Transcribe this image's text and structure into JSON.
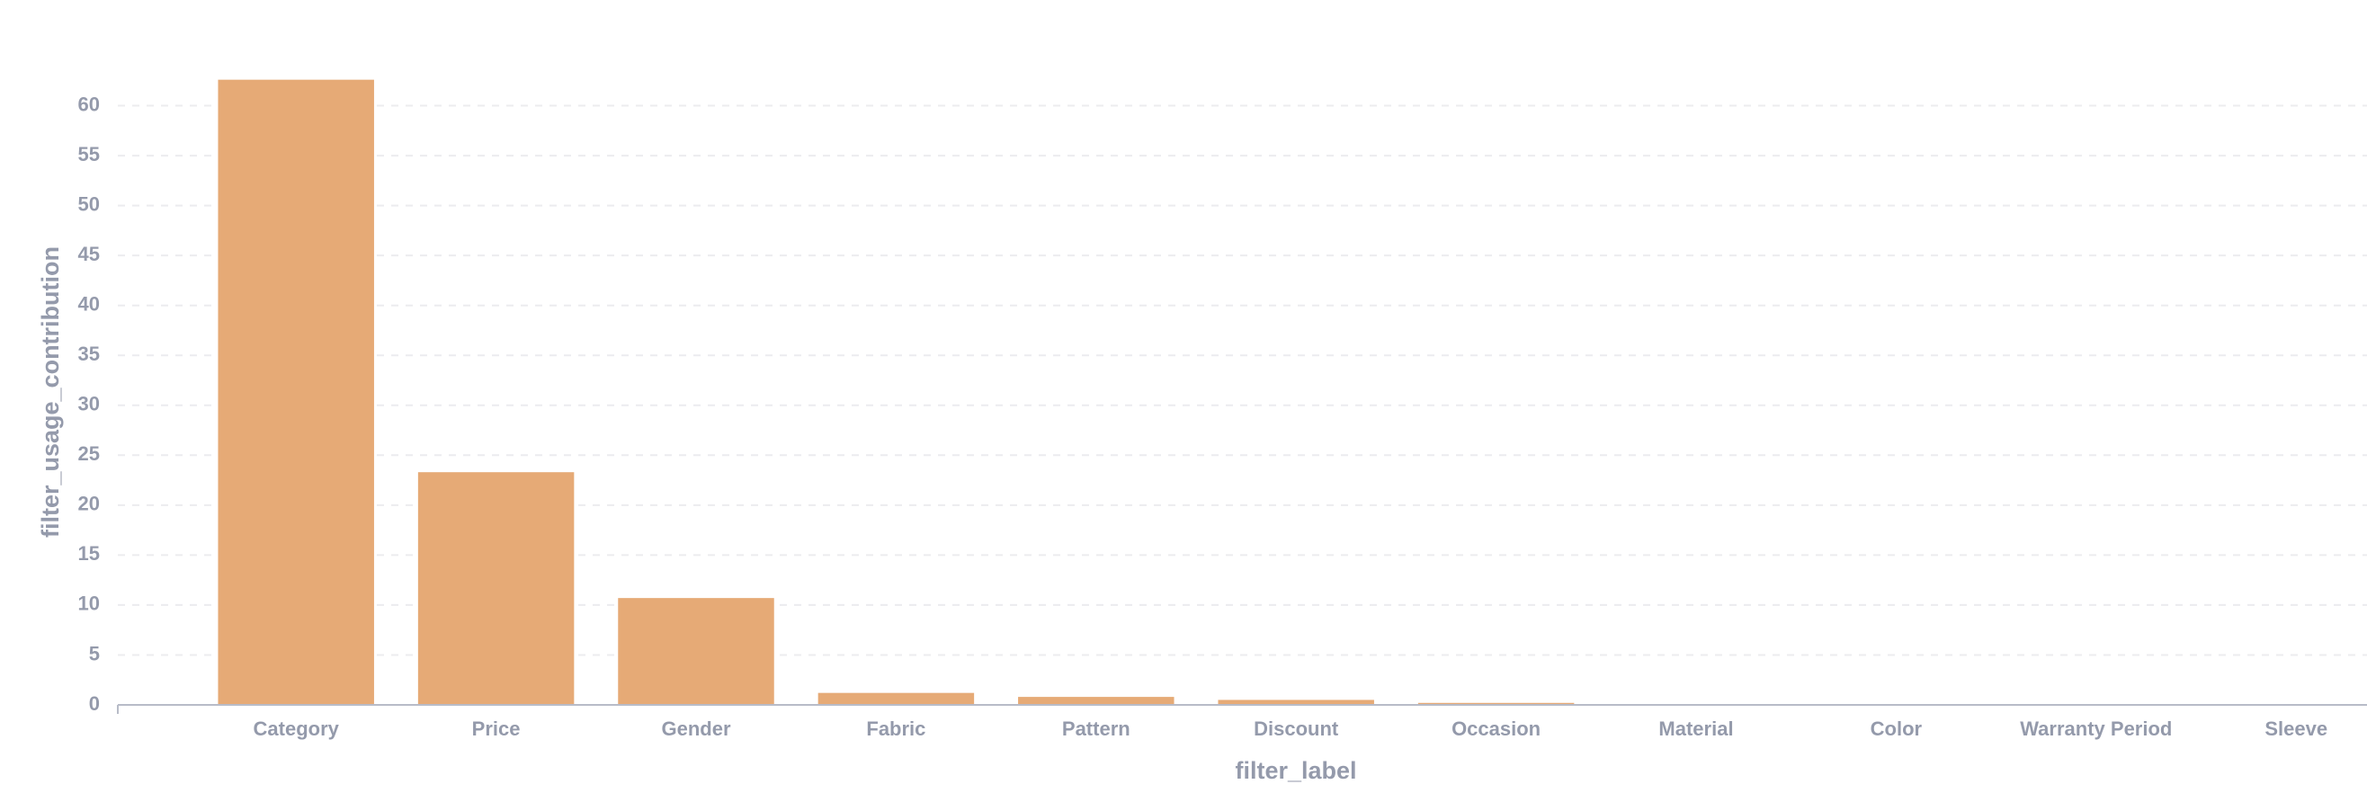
{
  "chart_data": {
    "type": "bar",
    "x_label": "filter_label",
    "y_label": "filter_usage_contribution",
    "categories": [
      "Category",
      "Price",
      "Gender",
      "Fabric",
      "Pattern",
      "Discount",
      "Occasion",
      "Material",
      "Color",
      "Warranty Period",
      "Sleeve"
    ],
    "values": [
      62.6,
      23.3,
      10.7,
      1.2,
      0.8,
      0.5,
      0.2,
      0,
      0,
      0,
      0
    ],
    "color": "#e6aa76",
    "ylim": [
      0,
      65
    ],
    "yticks": [
      0,
      5,
      10,
      15,
      20,
      25,
      30,
      35,
      40,
      45,
      50,
      55,
      60
    ],
    "grid": true
  }
}
